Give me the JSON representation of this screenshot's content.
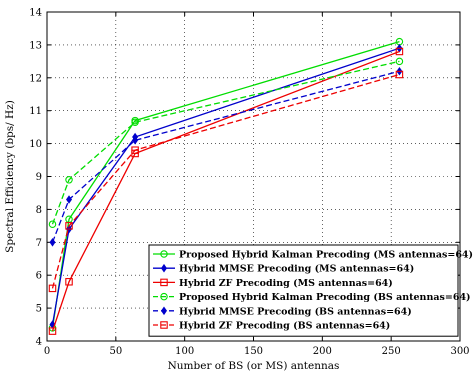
{
  "chart_data": {
    "type": "line",
    "xlabel": "Number of BS (or MS) antennas",
    "ylabel": "Spectral Efficiency (bps/ Hz)",
    "xlim": [
      0,
      300
    ],
    "ylim": [
      4,
      14
    ],
    "xticks": [
      "0",
      "50",
      "100",
      "150",
      "200",
      "250",
      "300"
    ],
    "yticks": [
      "4",
      "5",
      "6",
      "7",
      "8",
      "9",
      "10",
      "11",
      "12",
      "13",
      "14"
    ],
    "grid": true,
    "legend_position": "bottom-right",
    "x": [
      4,
      16,
      64,
      256
    ],
    "series": [
      {
        "name": "Proposed Hybrid Kalman Precoding (MS antennas=64)",
        "values": [
          4.4,
          7.7,
          10.7,
          13.1
        ],
        "color": "#00dd00",
        "dashed": false,
        "marker": "circle"
      },
      {
        "name": "Hybrid MMSE Precoding (MS antennas=64)",
        "values": [
          4.5,
          7.4,
          10.2,
          12.9
        ],
        "color": "#0000cc",
        "dashed": false,
        "marker": "diamond"
      },
      {
        "name": "Hybrid ZF Precoding (MS antennas=64)",
        "values": [
          4.3,
          5.8,
          9.7,
          12.8
        ],
        "color": "#ee0000",
        "dashed": false,
        "marker": "square"
      },
      {
        "name": "Proposed Hybrid Kalman Precoding (BS antennas=64)",
        "values": [
          7.55,
          8.9,
          10.65,
          12.5
        ],
        "color": "#00dd00",
        "dashed": true,
        "marker": "circle"
      },
      {
        "name": "Hybrid MMSE Precoding (BS antennas=64)",
        "values": [
          7.0,
          8.3,
          10.1,
          12.2
        ],
        "color": "#0000cc",
        "dashed": true,
        "marker": "diamond"
      },
      {
        "name": "Hybrid ZF Precoding (BS antennas=64)",
        "values": [
          5.6,
          7.5,
          9.8,
          12.1
        ],
        "color": "#ee0000",
        "dashed": true,
        "marker": "square"
      }
    ]
  }
}
